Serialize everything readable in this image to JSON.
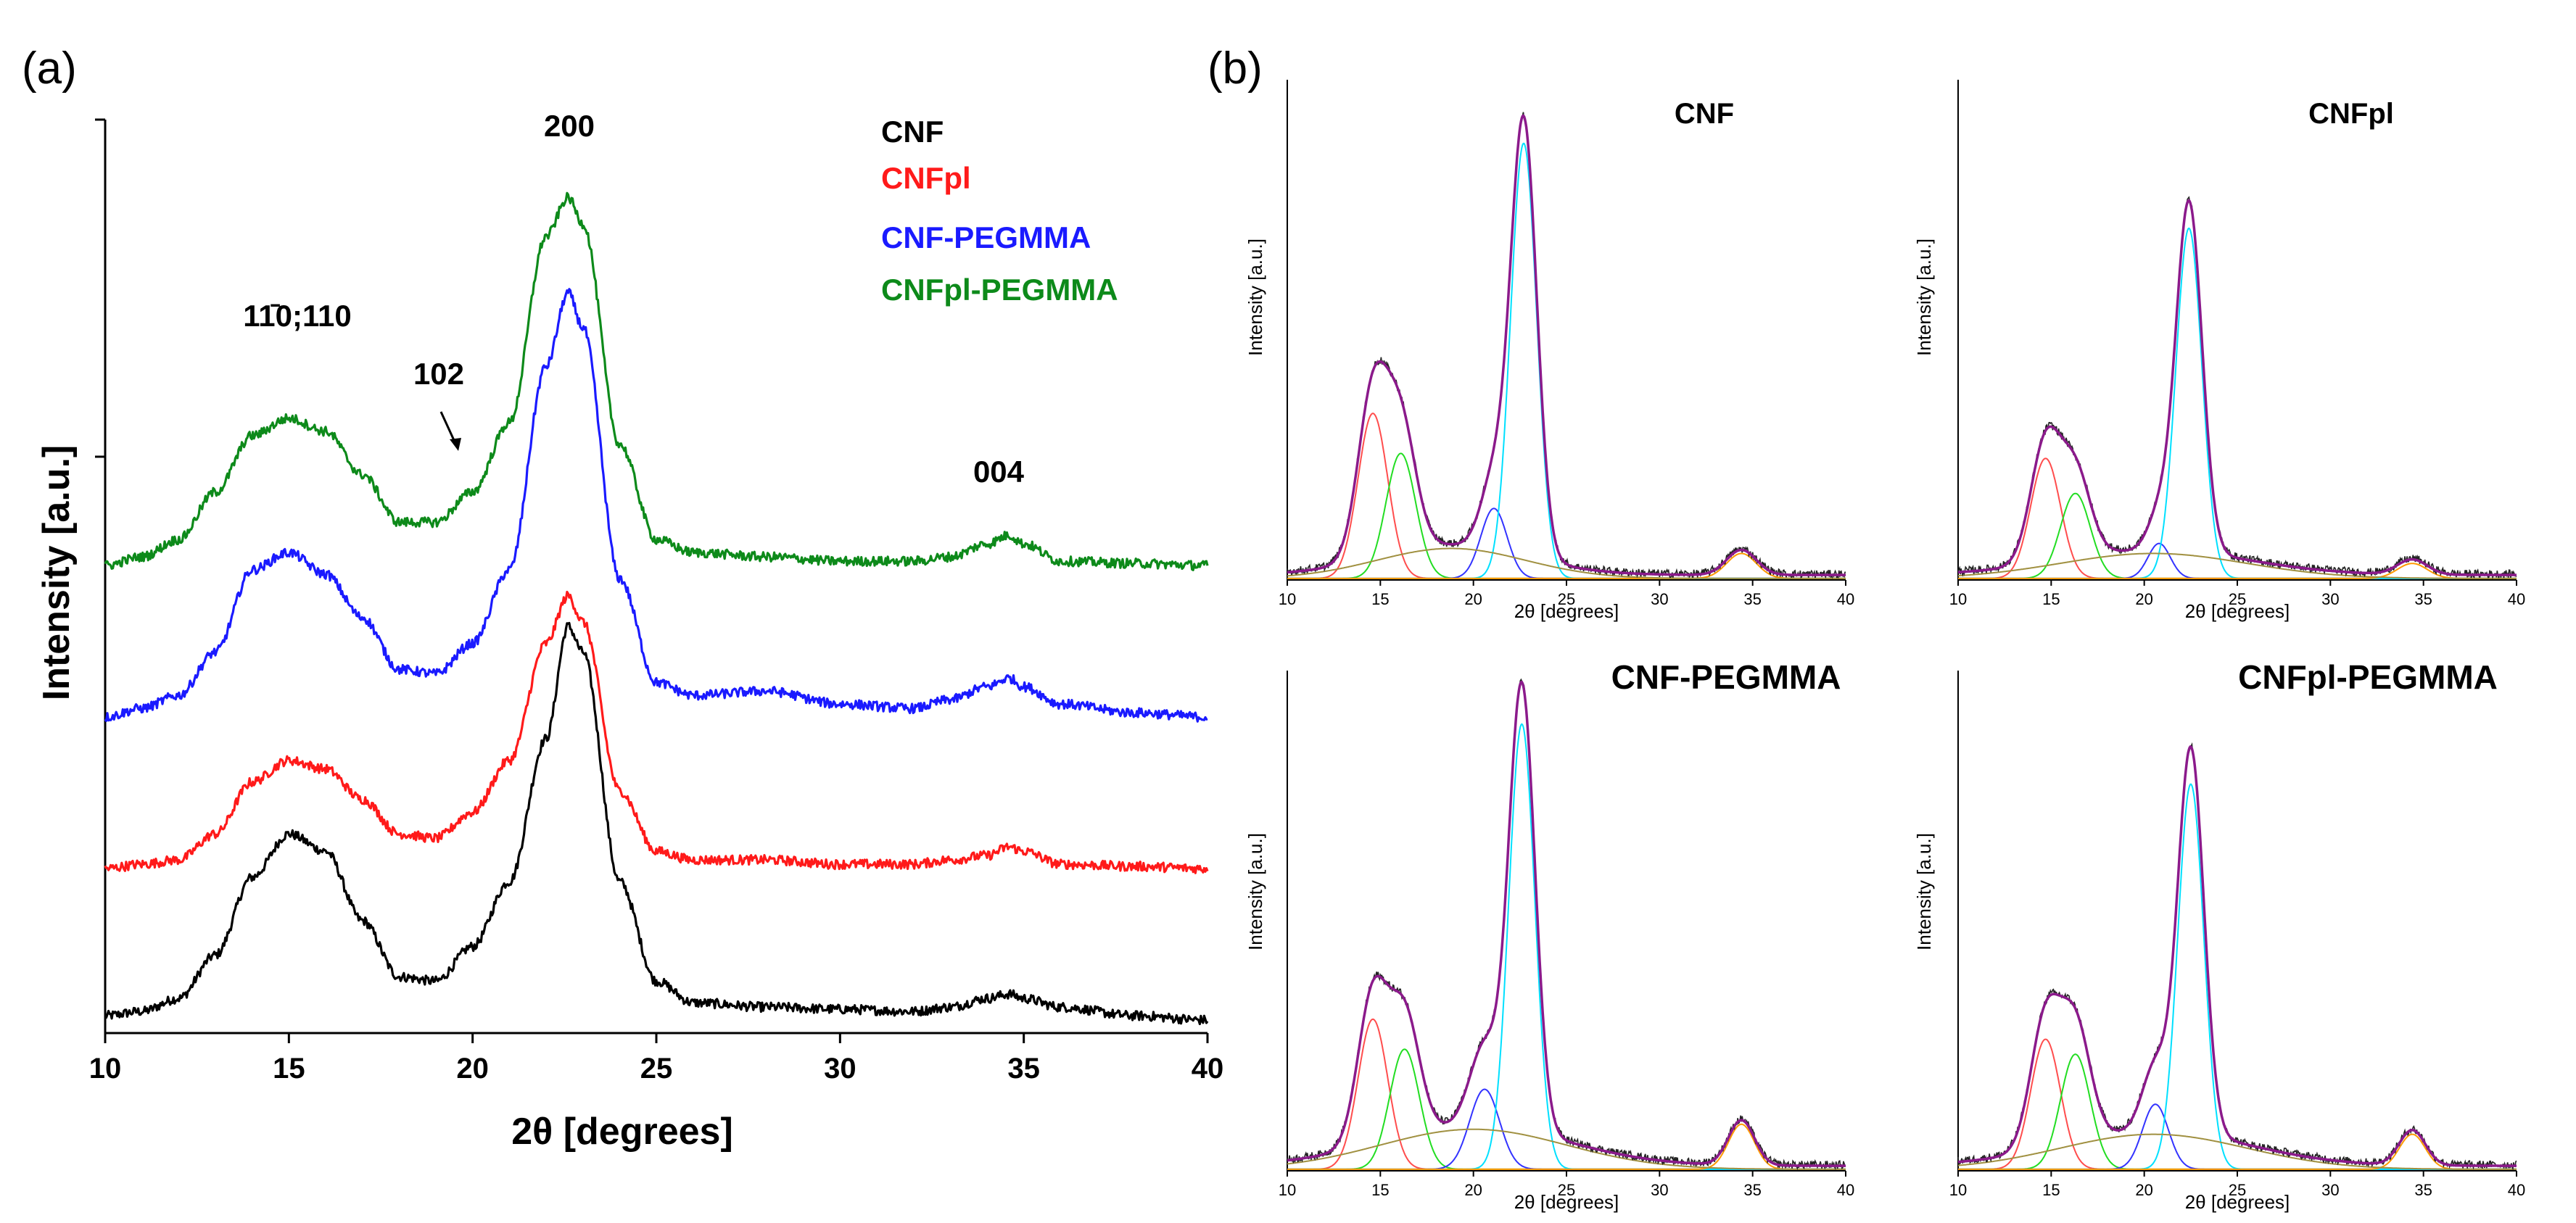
{
  "panel_labels": {
    "a": "(a)",
    "b": "(b)"
  },
  "colors": {
    "cnf": "#000000",
    "cnfpl": "#ff1a1a",
    "cnf_pegmma": "#1a1aff",
    "cnfpl_pegmma": "#0d8a1a",
    "fit_envelope": "#8b1a8b",
    "peak_110bar": "#ff4d4d",
    "peak_110": "#22dd22",
    "peak_102": "#3333ff",
    "peak_200": "#00e0ff",
    "peak_004": "#ff9900",
    "amorphous": "#a09040",
    "raw_subpanel": "#222222"
  },
  "chart_data": [
    {
      "type": "line",
      "panel": "(a)",
      "title": "",
      "xlabel": "2θ [degrees]",
      "ylabel": "Intensity [a.u.]",
      "xlim": [
        10,
        40
      ],
      "x_ticks": [
        "10",
        "15",
        "20",
        "25",
        "30",
        "35",
        "40"
      ],
      "y_ticks_labeled": false,
      "grid": false,
      "legend_placement": "top-right",
      "legend": [
        "CNF",
        "CNFpl",
        "CNF-PEGMMA",
        "CNFpl-PEGMMA"
      ],
      "annotations": {
        "peak_110": "11̄0;110",
        "peak_102": "102",
        "peak_200": "200",
        "peak_004": "004"
      },
      "series": [
        {
          "name": "CNF",
          "color_key": "cnf",
          "x": [
            10,
            11,
            12,
            13,
            14,
            15,
            16,
            17,
            18,
            19,
            20,
            21,
            22,
            22.6,
            23,
            24,
            25,
            26,
            28,
            30,
            32,
            33,
            34,
            34.6,
            35,
            36,
            38,
            40
          ],
          "y": [
            0.1,
            0.2,
            0.5,
            1.5,
            3.3,
            4.3,
            3.9,
            2.3,
            1.0,
            0.9,
            1.7,
            3.2,
            6.5,
            9.1,
            8.5,
            3.2,
            0.9,
            0.4,
            0.3,
            0.25,
            0.2,
            0.3,
            0.5,
            0.6,
            0.5,
            0.3,
            0.1,
            0.0
          ]
        },
        {
          "name": "CNFpl",
          "color_key": "cnfpl",
          "offset": 3.5,
          "x": [
            10,
            11,
            12,
            13,
            14,
            15,
            16,
            17,
            18,
            19,
            20,
            21,
            22,
            22.6,
            23,
            24,
            25,
            26,
            28,
            30,
            32,
            33,
            34,
            34.6,
            35,
            36,
            38,
            40
          ],
          "y": [
            0.0,
            0.1,
            0.2,
            0.8,
            2.0,
            2.5,
            2.3,
            1.6,
            0.8,
            0.7,
            1.3,
            2.5,
            5.2,
            6.3,
            5.7,
            1.8,
            0.4,
            0.2,
            0.2,
            0.1,
            0.1,
            0.2,
            0.3,
            0.5,
            0.4,
            0.1,
            0.05,
            0.0
          ]
        },
        {
          "name": "CNF-PEGMMA",
          "color_key": "cnf_pegmma",
          "offset": 7.0,
          "x": [
            10,
            11,
            12,
            13,
            14,
            15,
            16,
            17,
            18,
            19,
            20,
            21,
            22,
            22.6,
            23,
            24,
            25,
            26,
            28,
            30,
            32,
            33,
            34,
            34.6,
            35,
            36,
            38,
            40
          ],
          "y": [
            0.0,
            0.2,
            0.5,
            1.5,
            3.4,
            3.8,
            3.3,
            2.3,
            1.1,
            1.0,
            1.7,
            3.4,
            8.1,
            9.8,
            9.0,
            3.2,
            0.8,
            0.5,
            0.6,
            0.3,
            0.2,
            0.4,
            0.7,
            0.9,
            0.7,
            0.3,
            0.1,
            0.0
          ]
        },
        {
          "name": "CNFpl-PEGMMA",
          "color_key": "cnfpl_pegmma",
          "offset": 10.5,
          "x": [
            10,
            11,
            12,
            13,
            14,
            15,
            16,
            17,
            18,
            19,
            20,
            21,
            22,
            22.6,
            23,
            24,
            25,
            26,
            28,
            30,
            32,
            33,
            34,
            34.6,
            35,
            36,
            38,
            40
          ],
          "y": [
            0.0,
            0.2,
            0.6,
            1.7,
            3.0,
            3.4,
            3.1,
            2.1,
            1.0,
            1.0,
            1.7,
            3.3,
            7.6,
            8.5,
            7.9,
            2.8,
            0.6,
            0.3,
            0.2,
            0.1,
            0.1,
            0.2,
            0.5,
            0.7,
            0.5,
            0.1,
            0.05,
            0.0
          ]
        }
      ]
    },
    {
      "type": "line",
      "panel": "(b) CNF",
      "title": "CNF",
      "xlabel": "2θ [degrees]",
      "ylabel": "Intensity [a.u.]",
      "xlim": [
        10,
        40
      ],
      "ylim": [
        0,
        100
      ],
      "x_ticks": [
        "10",
        "15",
        "20",
        "25",
        "30",
        "35",
        "40"
      ],
      "peaks": [
        {
          "name": "11̄0",
          "center": 14.6,
          "height": 33,
          "width": 0.8,
          "color_key": "peak_110bar"
        },
        {
          "name": "110",
          "center": 16.1,
          "height": 25,
          "width": 0.8,
          "color_key": "peak_110"
        },
        {
          "name": "102",
          "center": 21.1,
          "height": 14,
          "width": 0.7,
          "color_key": "peak_102"
        },
        {
          "name": "200",
          "center": 22.7,
          "height": 87,
          "width": 0.7,
          "color_key": "peak_200"
        },
        {
          "name": "004",
          "center": 34.4,
          "height": 5,
          "width": 0.8,
          "color_key": "peak_004"
        },
        {
          "name": "amorphous",
          "center": 18.8,
          "height": 6,
          "width": 4.0,
          "color_key": "amorphous"
        }
      ]
    },
    {
      "type": "line",
      "panel": "(b) CNFpl",
      "title": "CNFpl",
      "xlabel": "2θ [degrees]",
      "ylabel": "Intensity [a.u.]",
      "xlim": [
        10,
        40
      ],
      "ylim": [
        0,
        100
      ],
      "x_ticks": [
        "10",
        "15",
        "20",
        "25",
        "30",
        "35",
        "40"
      ],
      "peaks": [
        {
          "name": "11̄0",
          "center": 14.7,
          "height": 24,
          "width": 0.8,
          "color_key": "peak_110bar"
        },
        {
          "name": "110",
          "center": 16.3,
          "height": 17,
          "width": 0.8,
          "color_key": "peak_110"
        },
        {
          "name": "102",
          "center": 20.8,
          "height": 7,
          "width": 0.6,
          "color_key": "peak_102"
        },
        {
          "name": "200",
          "center": 22.4,
          "height": 70,
          "width": 0.7,
          "color_key": "peak_200"
        },
        {
          "name": "004",
          "center": 34.4,
          "height": 3,
          "width": 0.8,
          "color_key": "peak_004"
        },
        {
          "name": "amorphous",
          "center": 20.5,
          "height": 5,
          "width": 5.0,
          "color_key": "amorphous"
        }
      ]
    },
    {
      "type": "line",
      "panel": "(b) CNF-PEGMMA",
      "title": "CNF-PEGMMA",
      "xlabel": "2θ [degrees]",
      "ylabel": "Intensity [a.u.]",
      "xlim": [
        10,
        40
      ],
      "ylim": [
        0,
        100
      ],
      "x_ticks": [
        "10",
        "15",
        "20",
        "25",
        "30",
        "35",
        "40"
      ],
      "peaks": [
        {
          "name": "11̄0",
          "center": 14.6,
          "height": 30,
          "width": 0.8,
          "color_key": "peak_110bar"
        },
        {
          "name": "110",
          "center": 16.3,
          "height": 24,
          "width": 0.8,
          "color_key": "peak_110"
        },
        {
          "name": "102",
          "center": 20.6,
          "height": 16,
          "width": 0.8,
          "color_key": "peak_102"
        },
        {
          "name": "200",
          "center": 22.6,
          "height": 89,
          "width": 0.7,
          "color_key": "peak_200"
        },
        {
          "name": "004",
          "center": 34.4,
          "height": 9,
          "width": 0.7,
          "color_key": "peak_004"
        },
        {
          "name": "amorphous",
          "center": 20.0,
          "height": 8,
          "width": 5.0,
          "color_key": "amorphous"
        }
      ]
    },
    {
      "type": "line",
      "panel": "(b) CNFpl-PEGMMA",
      "title": "CNFpl-PEGMMA",
      "xlabel": "2θ [degrees]",
      "ylabel": "Intensity [a.u.]",
      "xlim": [
        10,
        40
      ],
      "ylim": [
        0,
        100
      ],
      "x_ticks": [
        "10",
        "15",
        "20",
        "25",
        "30",
        "35",
        "40"
      ],
      "peaks": [
        {
          "name": "11̄0",
          "center": 14.7,
          "height": 26,
          "width": 0.8,
          "color_key": "peak_110bar"
        },
        {
          "name": "110",
          "center": 16.3,
          "height": 23,
          "width": 0.8,
          "color_key": "peak_110"
        },
        {
          "name": "102",
          "center": 20.6,
          "height": 13,
          "width": 0.7,
          "color_key": "peak_102"
        },
        {
          "name": "200",
          "center": 22.5,
          "height": 77,
          "width": 0.7,
          "color_key": "peak_200"
        },
        {
          "name": "004",
          "center": 34.4,
          "height": 7,
          "width": 0.7,
          "color_key": "peak_004"
        },
        {
          "name": "amorphous",
          "center": 20.5,
          "height": 7,
          "width": 5.0,
          "color_key": "amorphous"
        }
      ]
    }
  ]
}
